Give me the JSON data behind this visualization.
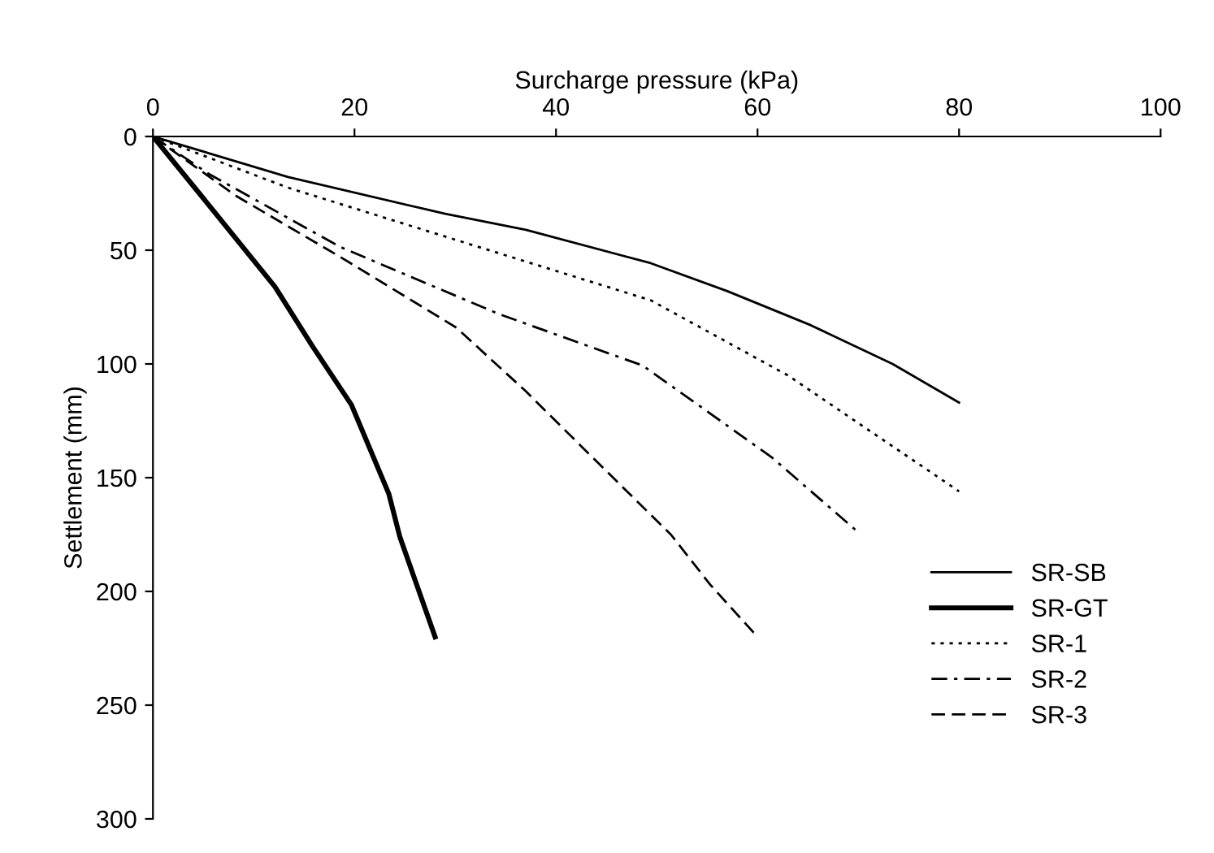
{
  "chart_data": {
    "type": "line",
    "xlabel": "Surcharge pressure (kPa)",
    "ylabel": "Settlement (mm)",
    "xlim": [
      0,
      100
    ],
    "xticks": [
      0,
      20,
      40,
      60,
      80,
      100
    ],
    "ylim": [
      300,
      0
    ],
    "yticks": [
      0,
      50,
      100,
      150,
      200,
      250,
      300
    ],
    "grid": false,
    "legend": "bottom right",
    "marker": "none",
    "series": [
      {
        "name": "SR-SB",
        "color": "#000000",
        "line_style": "solid",
        "x": [
          0,
          13.4,
          29,
          37,
          49.4,
          57,
          65.3,
          73.4,
          80
        ],
        "values": [
          0,
          17.8,
          34,
          41,
          55.7,
          68,
          83,
          100,
          117
        ]
      },
      {
        "name": "SR-GT",
        "color": "#000000",
        "line_style": "solid",
        "x": [
          0,
          4.6,
          12.1,
          15.8,
          19.7,
          23.4,
          24.5,
          28
        ],
        "values": [
          0,
          25,
          66,
          92,
          118,
          157,
          176,
          220
        ]
      },
      {
        "name": "SR-1",
        "color": "#000000",
        "line_style": "dotted",
        "x": [
          0,
          13.4,
          29,
          49.4,
          63,
          80
        ],
        "values": [
          0,
          22.5,
          44,
          72,
          105,
          156
        ]
      },
      {
        "name": "SR-2",
        "color": "#000000",
        "line_style": "dashdot",
        "x": [
          0,
          5.6,
          18.6,
          34.3,
          48.6,
          61.4,
          70
        ],
        "values": [
          0,
          16.6,
          48.6,
          78,
          100.7,
          141,
          174
        ]
      },
      {
        "name": "SR-3",
        "color": "#000000",
        "line_style": "dashed",
        "x": [
          0,
          8.2,
          18.6,
          30.1,
          37,
          43.6,
          51.4,
          55.3,
          60
        ],
        "values": [
          0,
          26,
          53,
          84,
          112,
          141,
          175,
          197,
          220
        ]
      }
    ]
  }
}
